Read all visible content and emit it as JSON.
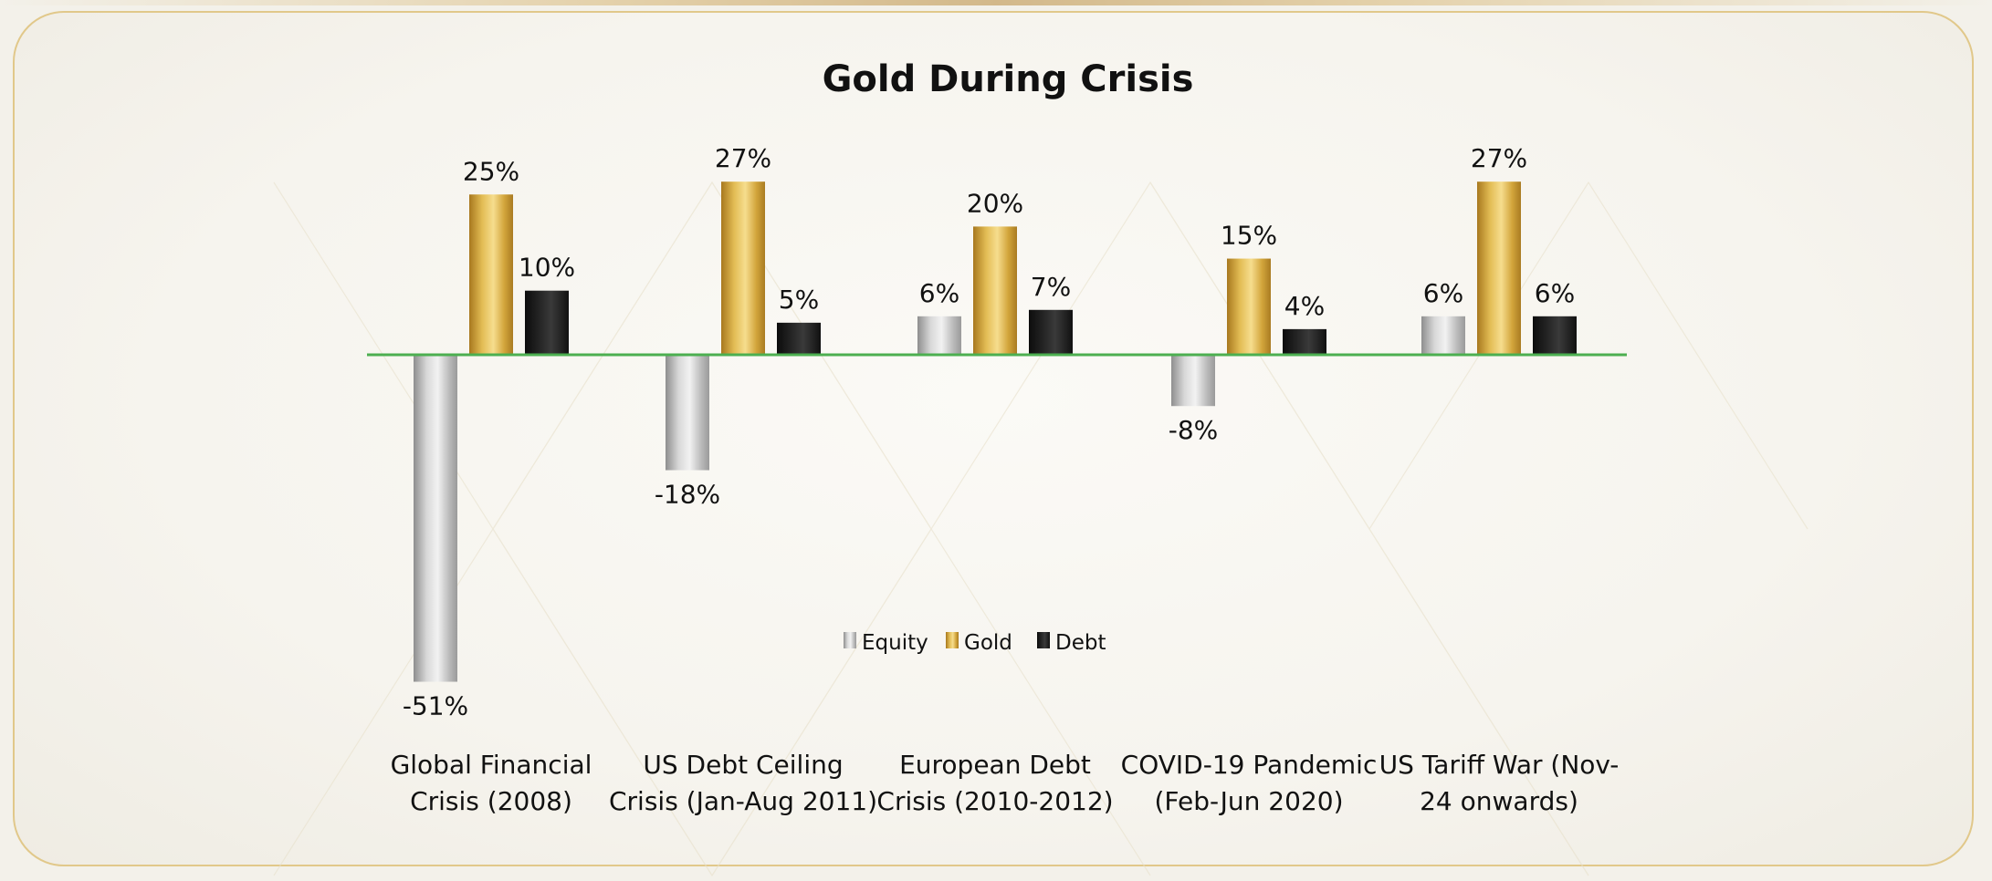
{
  "chart_data": {
    "type": "bar",
    "title": "Gold During Crisis",
    "categories": [
      [
        "Global Financial",
        "Crisis (2008)"
      ],
      [
        "US Debt Ceiling",
        "Crisis (Jan-Aug 2011)"
      ],
      [
        "European Debt",
        "Crisis (2010-2012)"
      ],
      [
        "COVID-19 Pandemic",
        "(Feb-Jun 2020)"
      ],
      [
        "US Tariff War (Nov-",
        "24 onwards)"
      ]
    ],
    "series": [
      {
        "name": "Equity",
        "values": [
          -51,
          -18,
          6,
          -8,
          6
        ],
        "labels": [
          "-51%",
          "-18%",
          "6%",
          "-8%",
          "6%"
        ]
      },
      {
        "name": "Gold",
        "values": [
          25,
          27,
          20,
          15,
          27
        ],
        "labels": [
          "25%",
          "27%",
          "20%",
          "15%",
          "27%"
        ]
      },
      {
        "name": "Debt",
        "values": [
          10,
          5,
          7,
          4,
          6
        ],
        "labels": [
          "10%",
          "5%",
          "7%",
          "4%",
          "6%"
        ]
      }
    ],
    "legend_position": "center",
    "baseline_color": "#4caf50",
    "grid": false,
    "colors": {
      "Equity": "#b9b9b9",
      "Gold": "#d4a939",
      "Debt": "#1a1a1a"
    }
  }
}
